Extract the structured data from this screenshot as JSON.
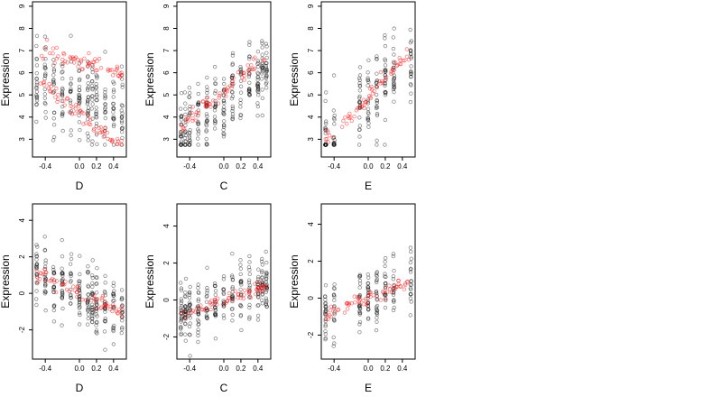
{
  "colors": {
    "observed": "#000000",
    "fitted": "#ff0000"
  },
  "chart_data": [
    {
      "type": "scatter",
      "title": "",
      "xlabel": "D",
      "ylabel": "Expression",
      "xlim": [
        -0.55,
        0.55
      ],
      "ylim": [
        2.2,
        9.2
      ],
      "xticks": [
        -0.4,
        0.0,
        0.2,
        0.4
      ],
      "xtick_labels": [
        "-0.4",
        "0.0",
        "0.2",
        "0.4"
      ],
      "yticks": [
        3,
        4,
        5,
        6,
        7,
        8,
        9
      ],
      "ytick_labels": [
        "3",
        "4",
        "5",
        "6",
        "7",
        "8",
        "9"
      ],
      "x_levels": [
        -0.5,
        -0.4,
        -0.3,
        -0.2,
        -0.1,
        0.0,
        0.1,
        0.15,
        0.2,
        0.3,
        0.4,
        0.5
      ],
      "observed_trend": {
        "intercept": 4.9,
        "slope": -1.2,
        "spread": 1.6
      },
      "fitted_curves": [
        {
          "intercept": 6.5,
          "slope": -1.2
        },
        {
          "intercept": 4.2,
          "slope": -3.0
        }
      ],
      "floor": 2.75,
      "grid": false,
      "legend": "none"
    },
    {
      "type": "scatter",
      "title": "",
      "xlabel": "C",
      "ylabel": "Expression",
      "xlim": [
        -0.55,
        0.55
      ],
      "ylim": [
        2.2,
        9.2
      ],
      "xticks": [
        -0.4,
        0.0,
        0.2,
        0.4
      ],
      "xtick_labels": [
        "-0.4",
        "0.0",
        "0.2",
        "0.4"
      ],
      "yticks": [
        3,
        4,
        5,
        6,
        7,
        8,
        9
      ],
      "ytick_labels": [
        "3",
        "4",
        "5",
        "6",
        "7",
        "8",
        "9"
      ],
      "x_levels": [
        -0.5,
        -0.45,
        -0.4,
        -0.3,
        -0.2,
        -0.1,
        0.0,
        0.1,
        0.2,
        0.3,
        0.4,
        0.45,
        0.5
      ],
      "observed_trend": {
        "intercept": 4.8,
        "slope": 3.0,
        "spread": 1.5
      },
      "fitted_curves": [
        {
          "intercept": 5.2,
          "slope": 3.2
        }
      ],
      "floor": 2.75,
      "grid": false,
      "legend": "none"
    },
    {
      "type": "scatter",
      "title": "",
      "xlabel": "E",
      "ylabel": "Expression",
      "xlim": [
        -0.55,
        0.55
      ],
      "ylim": [
        2.2,
        9.2
      ],
      "xticks": [
        -0.4,
        0.0,
        0.2,
        0.4
      ],
      "xtick_labels": [
        "-0.4",
        "0.0",
        "0.2",
        "0.4"
      ],
      "yticks": [
        3,
        4,
        5,
        6,
        7,
        8,
        9
      ],
      "ytick_labels": [
        "3",
        "4",
        "5",
        "6",
        "7",
        "8",
        "9"
      ],
      "x_levels": [
        -0.5,
        -0.4,
        -0.1,
        0.0,
        0.1,
        0.2,
        0.3,
        0.5
      ],
      "observed_trend": {
        "intercept": 4.8,
        "slope": 4.0,
        "spread": 1.6
      },
      "fitted_curves": [
        {
          "intercept": 4.9,
          "slope": 4.0
        }
      ],
      "floor": 2.75,
      "grid": false,
      "legend": "none"
    },
    {
      "type": "scatter",
      "title": "",
      "xlabel": "D",
      "ylabel": "Expression",
      "xlim": [
        -0.55,
        0.55
      ],
      "ylim": [
        -3.6,
        4.9
      ],
      "xticks": [
        -0.4,
        0.0,
        0.2,
        0.4
      ],
      "xtick_labels": [
        "-0.4",
        "0.0",
        "0.2",
        "0.4"
      ],
      "yticks": [
        -2,
        0,
        2,
        4
      ],
      "ytick_labels": [
        "-2",
        "0",
        "2",
        "4"
      ],
      "x_levels": [
        -0.5,
        -0.4,
        -0.3,
        -0.2,
        -0.1,
        0.0,
        0.1,
        0.15,
        0.2,
        0.3,
        0.4,
        0.5
      ],
      "observed_trend": {
        "intercept": 0.0,
        "slope": -2.1,
        "spread": 1.5
      },
      "fitted_curves": [
        {
          "intercept": 0.0,
          "slope": -2.1
        }
      ],
      "floor": null,
      "grid": false,
      "legend": "none"
    },
    {
      "type": "scatter",
      "title": "",
      "xlabel": "C",
      "ylabel": "Expression",
      "xlim": [
        -0.55,
        0.55
      ],
      "ylim": [
        -3.2,
        5.2
      ],
      "xticks": [
        -0.4,
        0.0,
        0.2,
        0.4
      ],
      "xtick_labels": [
        "-0.4",
        "0.0",
        "0.2",
        "0.4"
      ],
      "yticks": [
        -2,
        0,
        2,
        4
      ],
      "ytick_labels": [
        "-2",
        "0",
        "2",
        "4"
      ],
      "x_levels": [
        -0.5,
        -0.45,
        -0.4,
        -0.3,
        -0.2,
        -0.1,
        0.0,
        0.1,
        0.2,
        0.3,
        0.4,
        0.45,
        0.5
      ],
      "observed_trend": {
        "intercept": 0.0,
        "slope": 1.5,
        "spread": 1.4
      },
      "fitted_curves": [
        {
          "intercept": 0.0,
          "slope": 1.5
        }
      ],
      "floor": null,
      "grid": false,
      "legend": "none"
    },
    {
      "type": "scatter",
      "title": "",
      "xlabel": "E",
      "ylabel": "Expression",
      "xlim": [
        -0.55,
        0.55
      ],
      "ylim": [
        -3.3,
        5.1
      ],
      "xticks": [
        -0.4,
        0.0,
        0.2,
        0.4
      ],
      "xtick_labels": [
        "-0.4",
        "0.0",
        "0.2",
        "0.4"
      ],
      "yticks": [
        -2,
        0,
        2,
        4
      ],
      "ytick_labels": [
        "-2",
        "0",
        "2",
        "4"
      ],
      "x_levels": [
        -0.5,
        -0.4,
        -0.1,
        0.0,
        0.1,
        0.2,
        0.3,
        0.5
      ],
      "observed_trend": {
        "intercept": 0.0,
        "slope": 1.8,
        "spread": 1.5
      },
      "fitted_curves": [
        {
          "intercept": 0.0,
          "slope": 1.8
        }
      ],
      "floor": null,
      "grid": false,
      "legend": "none"
    }
  ]
}
